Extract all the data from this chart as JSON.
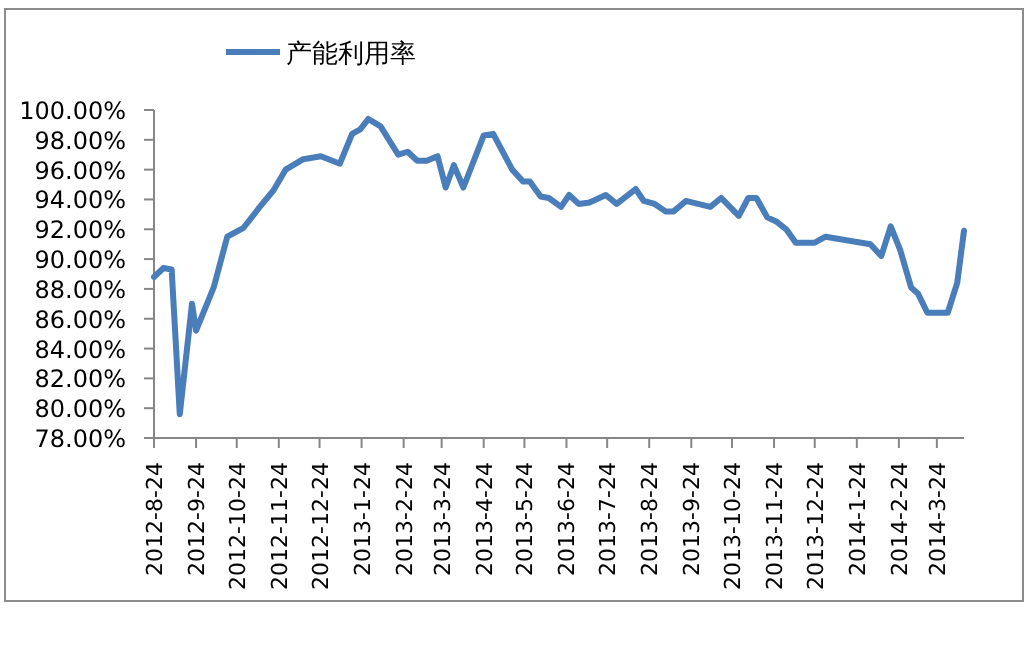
{
  "chart_data": {
    "type": "line",
    "legend": "top",
    "line_style": "solid",
    "x": [
      "2012-08-24",
      "2012-08-31",
      "2012-09-06",
      "2012-09-12",
      "2012-09-21",
      "2012-09-24",
      "2012-10-07",
      "2012-10-17",
      "2012-10-29",
      "2012-11-10",
      "2012-11-20",
      "2012-11-29",
      "2012-12-12",
      "2012-12-25",
      "2013-01-08",
      "2013-01-17",
      "2013-01-23",
      "2013-01-29",
      "2013-02-07",
      "2013-02-20",
      "2013-02-27",
      "2013-03-06",
      "2013-03-13",
      "2013-03-21",
      "2013-03-27",
      "2013-04-02",
      "2013-04-09",
      "2013-04-24",
      "2013-05-01",
      "2013-05-15",
      "2013-05-23",
      "2013-05-28",
      "2013-06-05",
      "2013-06-11",
      "2013-06-20",
      "2013-06-26",
      "2013-07-03",
      "2013-07-11",
      "2013-07-23",
      "2013-07-31",
      "2013-08-14",
      "2013-08-20",
      "2013-08-28",
      "2013-09-05",
      "2013-09-11",
      "2013-09-20",
      "2013-10-08",
      "2013-10-16",
      "2013-10-29",
      "2013-11-05",
      "2013-11-11",
      "2013-11-19",
      "2013-11-26",
      "2013-12-03",
      "2013-12-10",
      "2013-12-24",
      "2014-01-01",
      "2014-02-03",
      "2014-02-11",
      "2014-02-18",
      "2014-02-25",
      "2014-03-05",
      "2014-03-10",
      "2014-03-17",
      "2014-04-01",
      "2014-04-08",
      "2014-04-13"
    ],
    "series": [
      {
        "name": "产能利用率",
        "color": "#4a7ebb",
        "values": [
          88.8,
          89.4,
          89.3,
          79.6,
          87.0,
          85.2,
          88.1,
          91.5,
          92.1,
          93.5,
          94.6,
          96.0,
          96.7,
          96.9,
          96.4,
          98.4,
          98.7,
          99.4,
          98.9,
          97.0,
          97.2,
          96.6,
          96.6,
          96.9,
          94.8,
          96.3,
          94.8,
          98.3,
          98.4,
          96.0,
          95.2,
          95.2,
          94.2,
          94.1,
          93.5,
          94.3,
          93.7,
          93.8,
          94.3,
          93.7,
          94.7,
          93.9,
          93.7,
          93.2,
          93.2,
          93.9,
          93.5,
          94.1,
          92.9,
          94.1,
          94.1,
          92.8,
          92.5,
          92.0,
          91.1,
          91.1,
          91.5,
          91.0,
          90.2,
          92.2,
          90.6,
          88.1,
          87.7,
          86.4,
          86.4,
          88.4,
          91.9
        ]
      }
    ],
    "xlim": [
      "2012-08-24",
      "2014-04-13"
    ],
    "xticks": [
      {
        "value": "2012-08-24",
        "label": "2012-8-24"
      },
      {
        "value": "2012-09-24",
        "label": "2012-9-24"
      },
      {
        "value": "2012-10-24",
        "label": "2012-10-24"
      },
      {
        "value": "2012-11-24",
        "label": "2012-11-24"
      },
      {
        "value": "2012-12-24",
        "label": "2012-12-24"
      },
      {
        "value": "2013-01-24",
        "label": "2013-1-24"
      },
      {
        "value": "2013-02-24",
        "label": "2013-2-24"
      },
      {
        "value": "2013-03-24",
        "label": "2013-3-24"
      },
      {
        "value": "2013-04-24",
        "label": "2013-4-24"
      },
      {
        "value": "2013-05-24",
        "label": "2013-5-24"
      },
      {
        "value": "2013-06-24",
        "label": "2013-6-24"
      },
      {
        "value": "2013-07-24",
        "label": "2013-7-24"
      },
      {
        "value": "2013-08-24",
        "label": "2013-8-24"
      },
      {
        "value": "2013-09-24",
        "label": "2013-9-24"
      },
      {
        "value": "2013-10-24",
        "label": "2013-10-24"
      },
      {
        "value": "2013-11-24",
        "label": "2013-11-24"
      },
      {
        "value": "2013-12-24",
        "label": "2013-12-24"
      },
      {
        "value": "2014-01-24",
        "label": "2014-1-24"
      },
      {
        "value": "2014-02-24",
        "label": "2014-2-24"
      },
      {
        "value": "2014-03-24",
        "label": "2014-3-24"
      }
    ],
    "ylim": [
      78,
      100
    ],
    "yticks": [
      {
        "value": 78,
        "label": "78.00%"
      },
      {
        "value": 80,
        "label": "80.00%"
      },
      {
        "value": 82,
        "label": "82.00%"
      },
      {
        "value": 84,
        "label": "84.00%"
      },
      {
        "value": 86,
        "label": "86.00%"
      },
      {
        "value": 88,
        "label": "88.00%"
      },
      {
        "value": 90,
        "label": "90.00%"
      },
      {
        "value": 92,
        "label": "92.00%"
      },
      {
        "value": 94,
        "label": "94.00%"
      },
      {
        "value": 96,
        "label": "96.00%"
      },
      {
        "value": 98,
        "label": "98.00%"
      },
      {
        "value": 100,
        "label": "100.00%"
      }
    ]
  }
}
